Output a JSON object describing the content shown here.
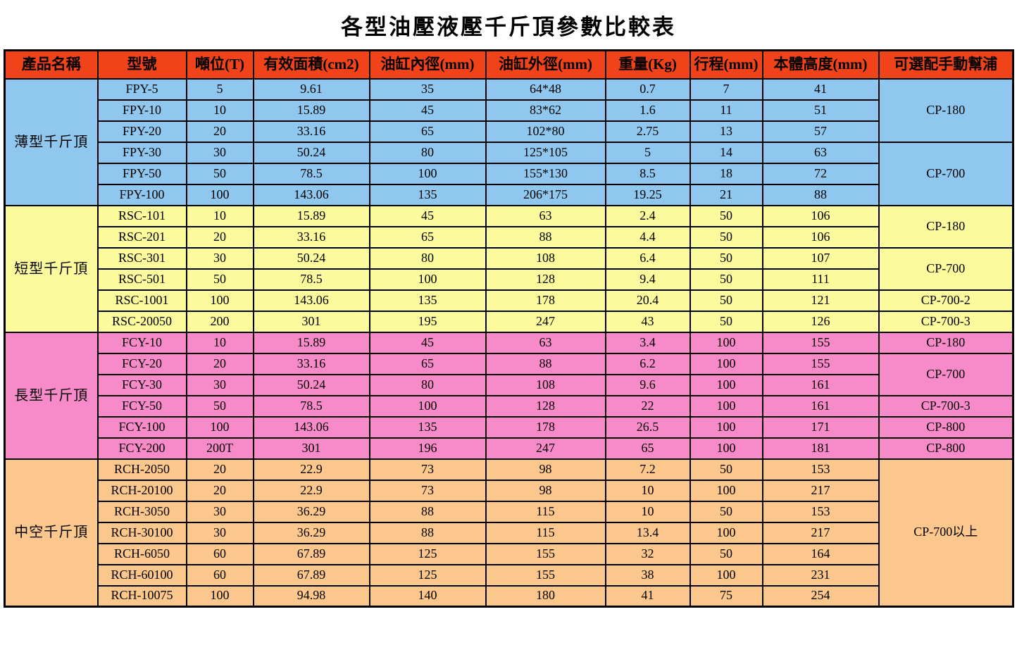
{
  "title": "各型油壓液壓千斤頂參數比較表",
  "table": {
    "header_color": "#F0431A",
    "columns": [
      "產品名稱",
      "型號",
      "噸位(T)",
      "有效面積(cm2)",
      "油缸內徑(mm)",
      "油缸外徑(mm)",
      "重量(Kg)",
      "行程(mm)",
      "本體高度(mm)",
      "可選配手動幫浦"
    ],
    "fields": [
      "model",
      "tonnage",
      "area",
      "inner_dia",
      "outer_dia",
      "weight",
      "stroke",
      "body_height"
    ],
    "groups": [
      {
        "name": "薄型千斤頂",
        "color": "#8FC7EE",
        "rows": [
          {
            "model": "FPY-5",
            "tonnage": "5",
            "area": "9.61",
            "inner_dia": "35",
            "outer_dia": "64*48",
            "weight": "0.7",
            "stroke": "7",
            "body_height": "41"
          },
          {
            "model": "FPY-10",
            "tonnage": "10",
            "area": "15.89",
            "inner_dia": "45",
            "outer_dia": "83*62",
            "weight": "1.6",
            "stroke": "11",
            "body_height": "51"
          },
          {
            "model": "FPY-20",
            "tonnage": "20",
            "area": "33.16",
            "inner_dia": "65",
            "outer_dia": "102*80",
            "weight": "2.75",
            "stroke": "13",
            "body_height": "57"
          },
          {
            "model": "FPY-30",
            "tonnage": "30",
            "area": "50.24",
            "inner_dia": "80",
            "outer_dia": "125*105",
            "weight": "5",
            "stroke": "14",
            "body_height": "63"
          },
          {
            "model": "FPY-50",
            "tonnage": "50",
            "area": "78.5",
            "inner_dia": "100",
            "outer_dia": "155*130",
            "weight": "8.5",
            "stroke": "18",
            "body_height": "72"
          },
          {
            "model": "FPY-100",
            "tonnage": "100",
            "area": "143.06",
            "inner_dia": "135",
            "outer_dia": "206*175",
            "weight": "19.25",
            "stroke": "21",
            "body_height": "88"
          }
        ],
        "pumps": [
          {
            "label": "CP-180",
            "span": 3
          },
          {
            "label": "CP-700",
            "span": 3
          }
        ]
      },
      {
        "name": "短型千斤頂",
        "color": "#FBFB9E",
        "rows": [
          {
            "model": "RSC-101",
            "tonnage": "10",
            "area": "15.89",
            "inner_dia": "45",
            "outer_dia": "63",
            "weight": "2.4",
            "stroke": "50",
            "body_height": "106"
          },
          {
            "model": "RSC-201",
            "tonnage": "20",
            "area": "33.16",
            "inner_dia": "65",
            "outer_dia": "88",
            "weight": "4.4",
            "stroke": "50",
            "body_height": "106"
          },
          {
            "model": "RSC-301",
            "tonnage": "30",
            "area": "50.24",
            "inner_dia": "80",
            "outer_dia": "108",
            "weight": "6.4",
            "stroke": "50",
            "body_height": "107"
          },
          {
            "model": "RSC-501",
            "tonnage": "50",
            "area": "78.5",
            "inner_dia": "100",
            "outer_dia": "128",
            "weight": "9.4",
            "stroke": "50",
            "body_height": "111"
          },
          {
            "model": "RSC-1001",
            "tonnage": "100",
            "area": "143.06",
            "inner_dia": "135",
            "outer_dia": "178",
            "weight": "20.4",
            "stroke": "50",
            "body_height": "121"
          },
          {
            "model": "RSC-20050",
            "tonnage": "200",
            "area": "301",
            "inner_dia": "195",
            "outer_dia": "247",
            "weight": "43",
            "stroke": "50",
            "body_height": "126"
          }
        ],
        "pumps": [
          {
            "label": "CP-180",
            "span": 2
          },
          {
            "label": "CP-700",
            "span": 2
          },
          {
            "label": "CP-700-2",
            "span": 1
          },
          {
            "label": "CP-700-3",
            "span": 1
          }
        ]
      },
      {
        "name": "長型千斤頂",
        "color": "#F78BC9",
        "rows": [
          {
            "model": "FCY-10",
            "tonnage": "10",
            "area": "15.89",
            "inner_dia": "45",
            "outer_dia": "63",
            "weight": "3.4",
            "stroke": "100",
            "body_height": "155"
          },
          {
            "model": "FCY-20",
            "tonnage": "20",
            "area": "33.16",
            "inner_dia": "65",
            "outer_dia": "88",
            "weight": "6.2",
            "stroke": "100",
            "body_height": "155"
          },
          {
            "model": "FCY-30",
            "tonnage": "30",
            "area": "50.24",
            "inner_dia": "80",
            "outer_dia": "108",
            "weight": "9.6",
            "stroke": "100",
            "body_height": "161"
          },
          {
            "model": "FCY-50",
            "tonnage": "50",
            "area": "78.5",
            "inner_dia": "100",
            "outer_dia": "128",
            "weight": "22",
            "stroke": "100",
            "body_height": "161"
          },
          {
            "model": "FCY-100",
            "tonnage": "100",
            "area": "143.06",
            "inner_dia": "135",
            "outer_dia": "178",
            "weight": "26.5",
            "stroke": "100",
            "body_height": "171"
          },
          {
            "model": "FCY-200",
            "tonnage": "200T",
            "area": "301",
            "inner_dia": "196",
            "outer_dia": "247",
            "weight": "65",
            "stroke": "100",
            "body_height": "181"
          }
        ],
        "pumps": [
          {
            "label": "CP-180",
            "span": 1
          },
          {
            "label": "CP-700",
            "span": 2
          },
          {
            "label": "CP-700-3",
            "span": 1
          },
          {
            "label": "CP-800",
            "span": 1
          },
          {
            "label": "CP-800",
            "span": 1
          }
        ]
      },
      {
        "name": "中空千斤頂",
        "color": "#FBC78C",
        "rows": [
          {
            "model": "RCH-2050",
            "tonnage": "20",
            "area": "22.9",
            "inner_dia": "73",
            "outer_dia": "98",
            "weight": "7.2",
            "stroke": "50",
            "body_height": "153"
          },
          {
            "model": "RCH-20100",
            "tonnage": "20",
            "area": "22.9",
            "inner_dia": "73",
            "outer_dia": "98",
            "weight": "10",
            "stroke": "100",
            "body_height": "217"
          },
          {
            "model": "RCH-3050",
            "tonnage": "30",
            "area": "36.29",
            "inner_dia": "88",
            "outer_dia": "115",
            "weight": "10",
            "stroke": "50",
            "body_height": "153"
          },
          {
            "model": "RCH-30100",
            "tonnage": "30",
            "area": "36.29",
            "inner_dia": "88",
            "outer_dia": "115",
            "weight": "13.4",
            "stroke": "100",
            "body_height": "217"
          },
          {
            "model": "RCH-6050",
            "tonnage": "60",
            "area": "67.89",
            "inner_dia": "125",
            "outer_dia": "155",
            "weight": "32",
            "stroke": "50",
            "body_height": "164"
          },
          {
            "model": "RCH-60100",
            "tonnage": "60",
            "area": "67.89",
            "inner_dia": "125",
            "outer_dia": "155",
            "weight": "38",
            "stroke": "100",
            "body_height": "231"
          },
          {
            "model": "RCH-10075",
            "tonnage": "100",
            "area": "94.98",
            "inner_dia": "140",
            "outer_dia": "180",
            "weight": "41",
            "stroke": "75",
            "body_height": "254"
          }
        ],
        "pumps": [
          {
            "label": "CP-700以上",
            "span": 7
          }
        ]
      }
    ]
  }
}
